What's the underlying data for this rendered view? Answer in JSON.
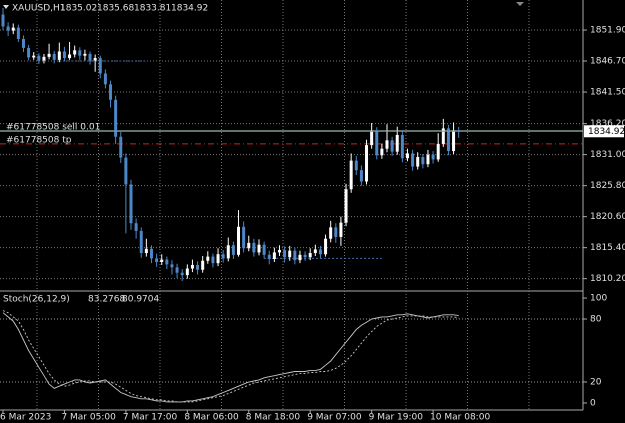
{
  "chart_data": [
    {
      "type": "candlestick",
      "symbol": "XAUUSD,H1",
      "categories": [
        "6 Mar 2023",
        null,
        null,
        null,
        null,
        null,
        null,
        null,
        null,
        null,
        null,
        null,
        "7 Mar 05:00",
        null,
        null,
        null,
        null,
        null,
        null,
        null,
        null,
        null,
        null,
        null,
        "7 Mar 17:00",
        null,
        null,
        null,
        null,
        null,
        null,
        null,
        null,
        null,
        null,
        null,
        "8 Mar 06:00",
        null,
        null,
        null,
        null,
        null,
        null,
        null,
        null,
        null,
        null,
        null,
        "8 Mar 18:00",
        null,
        null,
        null,
        null,
        null,
        null,
        null,
        null,
        null,
        null,
        null,
        "9 Mar 07:00",
        null,
        null,
        null,
        null,
        null,
        null,
        null,
        null,
        null,
        null,
        null,
        "9 Mar 19:00",
        null,
        null,
        null,
        null,
        null,
        null,
        null,
        null,
        null,
        null,
        null,
        "10 Mar 08:00",
        null,
        null,
        null,
        null,
        null
      ],
      "ohlc": [
        [
          1854.5,
          1855.6,
          1851.9,
          1852.5
        ],
        [
          1852.5,
          1853.2,
          1850.9,
          1851.8
        ],
        [
          1851.8,
          1853.0,
          1851.2,
          1852.3
        ],
        [
          1852.3,
          1852.8,
          1849.9,
          1850.4
        ],
        [
          1850.4,
          1851.0,
          1848.2,
          1848.9
        ],
        [
          1848.9,
          1849.4,
          1846.8,
          1847.3
        ],
        [
          1847.3,
          1848.2,
          1846.9,
          1847.6
        ],
        [
          1847.6,
          1848.0,
          1846.2,
          1846.8
        ],
        [
          1846.8,
          1847.9,
          1846.3,
          1847.4
        ],
        [
          1847.4,
          1849.6,
          1847.0,
          1847.9
        ],
        [
          1847.9,
          1848.4,
          1846.3,
          1846.9
        ],
        [
          1846.9,
          1849.8,
          1846.5,
          1848.3
        ],
        [
          1848.3,
          1849.1,
          1846.7,
          1847.2
        ],
        [
          1847.2,
          1849.9,
          1846.9,
          1847.8
        ],
        [
          1847.8,
          1849.3,
          1847.3,
          1848.5
        ],
        [
          1848.5,
          1849.0,
          1846.9,
          1847.6
        ],
        [
          1847.6,
          1848.6,
          1846.8,
          1847.9
        ],
        [
          1847.9,
          1848.3,
          1846.1,
          1846.8
        ],
        [
          1846.8,
          1847.8,
          1844.9,
          1847.2
        ],
        [
          1847.2,
          1847.6,
          1843.8,
          1844.6
        ],
        [
          1844.6,
          1845.3,
          1842.1,
          1842.8
        ],
        [
          1842.8,
          1843.4,
          1838.9,
          1840.2
        ],
        [
          1840.2,
          1840.9,
          1832.8,
          1834.0
        ],
        [
          1834.0,
          1834.8,
          1829.6,
          1830.5
        ],
        [
          1830.5,
          1831.2,
          1817.8,
          1826.0
        ],
        [
          1826.0,
          1826.8,
          1818.4,
          1819.5
        ],
        [
          1819.5,
          1820.3,
          1816.9,
          1818.2
        ],
        [
          1818.2,
          1818.8,
          1813.7,
          1814.5
        ],
        [
          1814.5,
          1816.9,
          1813.9,
          1815.2
        ],
        [
          1815.2,
          1815.8,
          1812.8,
          1813.6
        ],
        [
          1813.6,
          1814.4,
          1812.2,
          1813.0
        ],
        [
          1813.0,
          1814.3,
          1812.5,
          1813.4
        ],
        [
          1813.4,
          1813.9,
          1811.8,
          1812.6
        ],
        [
          1812.6,
          1813.3,
          1810.9,
          1812.1
        ],
        [
          1812.1,
          1812.7,
          1810.3,
          1811.2
        ],
        [
          1811.2,
          1811.8,
          1809.8,
          1810.8
        ],
        [
          1810.8,
          1812.6,
          1810.2,
          1811.9
        ],
        [
          1811.9,
          1813.4,
          1811.3,
          1812.5
        ],
        [
          1812.5,
          1813.1,
          1810.9,
          1811.7
        ],
        [
          1811.7,
          1814.0,
          1811.2,
          1813.2
        ],
        [
          1813.2,
          1814.8,
          1812.7,
          1813.9
        ],
        [
          1813.9,
          1814.4,
          1812.1,
          1812.8
        ],
        [
          1812.8,
          1815.3,
          1812.3,
          1814.3
        ],
        [
          1814.3,
          1815.0,
          1812.9,
          1813.6
        ],
        [
          1813.6,
          1817.1,
          1813.1,
          1815.8
        ],
        [
          1815.8,
          1816.4,
          1813.5,
          1814.2
        ],
        [
          1814.2,
          1821.7,
          1813.9,
          1818.9
        ],
        [
          1818.9,
          1819.8,
          1814.6,
          1815.3
        ],
        [
          1815.3,
          1817.4,
          1814.8,
          1816.2
        ],
        [
          1816.2,
          1816.9,
          1813.9,
          1814.6
        ],
        [
          1814.6,
          1816.8,
          1814.1,
          1815.9
        ],
        [
          1815.9,
          1816.4,
          1813.6,
          1814.2
        ],
        [
          1814.2,
          1814.9,
          1812.6,
          1813.5
        ],
        [
          1813.5,
          1815.4,
          1813.0,
          1814.6
        ],
        [
          1814.6,
          1815.8,
          1814.0,
          1815.0
        ],
        [
          1815.0,
          1815.6,
          1812.9,
          1813.8
        ],
        [
          1813.8,
          1815.7,
          1813.2,
          1814.9
        ],
        [
          1814.9,
          1815.4,
          1812.6,
          1813.3
        ],
        [
          1813.3,
          1814.9,
          1812.8,
          1814.2
        ],
        [
          1814.2,
          1814.8,
          1813.2,
          1813.8
        ],
        [
          1813.8,
          1815.3,
          1813.3,
          1814.5
        ],
        [
          1814.5,
          1815.9,
          1814.0,
          1815.1
        ],
        [
          1815.1,
          1815.7,
          1813.6,
          1814.3
        ],
        [
          1814.3,
          1817.6,
          1813.9,
          1816.9
        ],
        [
          1816.9,
          1819.9,
          1816.3,
          1818.8
        ],
        [
          1818.8,
          1819.5,
          1816.2,
          1817.2
        ],
        [
          1817.2,
          1820.6,
          1815.7,
          1819.6
        ],
        [
          1819.6,
          1826.1,
          1819.0,
          1825.2
        ],
        [
          1825.2,
          1831.2,
          1824.6,
          1830.0
        ],
        [
          1830.0,
          1830.8,
          1827.6,
          1828.4
        ],
        [
          1828.4,
          1829.2,
          1825.8,
          1826.5
        ],
        [
          1826.5,
          1833.5,
          1826.0,
          1832.6
        ],
        [
          1832.6,
          1836.3,
          1832.0,
          1835.0
        ],
        [
          1835.0,
          1835.6,
          1830.2,
          1830.9
        ],
        [
          1830.9,
          1832.8,
          1830.3,
          1832.0
        ],
        [
          1832.0,
          1836.1,
          1831.4,
          1833.4
        ],
        [
          1833.4,
          1834.0,
          1830.8,
          1831.5
        ],
        [
          1831.5,
          1835.7,
          1831.0,
          1834.3
        ],
        [
          1834.3,
          1834.9,
          1829.7,
          1830.4
        ],
        [
          1830.4,
          1832.0,
          1829.9,
          1831.2
        ],
        [
          1831.2,
          1831.8,
          1828.3,
          1829.0
        ],
        [
          1829.0,
          1831.4,
          1828.5,
          1830.6
        ],
        [
          1830.6,
          1831.1,
          1828.7,
          1829.4
        ],
        [
          1829.4,
          1831.8,
          1828.9,
          1831.0
        ],
        [
          1831.0,
          1831.6,
          1829.5,
          1830.2
        ],
        [
          1830.2,
          1834.6,
          1829.8,
          1832.8
        ],
        [
          1832.8,
          1837.0,
          1832.3,
          1835.4
        ],
        [
          1835.4,
          1836.0,
          1830.9,
          1831.6
        ],
        [
          1831.6,
          1836.4,
          1831.1,
          1835.02
        ],
        [
          1835.02,
          1835.68,
          1833.81,
          1834.92
        ]
      ],
      "bull_color": "#ffffff",
      "bear_color": "#4d87c7",
      "ylim": [
        1808.3,
        1856.6
      ],
      "yticks": [
        {
          "value": 1851.9,
          "label": "1851.90"
        },
        {
          "value": 1846.7,
          "label": "1846.70"
        },
        {
          "value": 1841.5,
          "label": "1841.50"
        },
        {
          "value": 1836.2,
          "label": "1836.20"
        },
        {
          "value": 1831.0,
          "label": "1831.00"
        },
        {
          "value": 1825.8,
          "label": "1825.80"
        },
        {
          "value": 1820.6,
          "label": "1820.60"
        },
        {
          "value": 1815.4,
          "label": "1815.40"
        },
        {
          "value": 1810.2,
          "label": "1810.20"
        }
      ],
      "grid": true,
      "price_line_color": "#7d9c90",
      "orders": [
        {
          "label": "#61778508 sell 0.01",
          "price": 1835.0,
          "color": "#7d9c90",
          "dash": false
        },
        {
          "label": "#61778508 tp",
          "price": 1832.8,
          "color": "#d02020",
          "dash": true
        }
      ],
      "levels": [
        {
          "price": 1846.7,
          "from": 11,
          "to": 28,
          "color": "#3f6fb0"
        },
        {
          "price": 1813.6,
          "from": 51,
          "to": 74,
          "color": "#3f6fb0"
        }
      ]
    },
    {
      "type": "line",
      "title": "Stoch(26,12,9)",
      "series": [
        {
          "color": "#c8c8c8",
          "dash": false,
          "values": [
            86,
            82,
            78,
            70,
            60,
            50,
            42,
            34,
            26,
            18,
            14,
            16,
            18,
            20,
            22,
            22,
            20,
            19,
            20,
            21,
            22,
            18,
            14,
            10,
            8,
            6,
            5,
            4,
            4,
            3,
            2,
            2,
            1,
            1,
            1,
            1,
            2,
            2,
            3,
            4,
            5,
            6,
            8,
            10,
            12,
            14,
            16,
            18,
            20,
            21,
            22,
            24,
            25,
            26,
            27,
            28,
            29,
            30,
            30,
            30,
            31,
            31,
            32,
            36,
            40,
            46,
            52,
            58,
            64,
            70,
            74,
            77,
            80,
            81,
            82,
            82,
            83,
            84,
            84,
            85,
            84,
            83,
            82,
            81,
            82,
            83,
            84,
            84,
            84,
            83.2768
          ]
        },
        {
          "color": "#c8c8c8",
          "dash": true,
          "values": [
            88,
            86,
            82,
            78,
            70,
            60,
            52,
            44,
            36,
            28,
            22,
            18,
            16,
            17,
            19,
            20,
            21,
            21,
            20,
            20,
            20,
            20,
            18,
            15,
            12,
            9,
            7,
            6,
            5,
            4,
            3,
            3,
            2,
            2,
            1,
            1,
            1,
            1,
            2,
            3,
            4,
            5,
            6,
            7,
            9,
            11,
            13,
            15,
            17,
            19,
            20,
            21,
            22,
            23,
            24,
            25,
            26,
            27,
            28,
            28,
            29,
            29,
            30,
            30,
            31,
            33,
            36,
            40,
            45,
            51,
            57,
            63,
            68,
            73,
            76,
            79,
            80,
            81,
            82,
            83,
            83,
            83,
            83,
            82,
            82,
            82,
            82,
            82,
            82,
            80.9704
          ]
        }
      ],
      "ylim": [
        -6.7,
        104.8
      ],
      "yticks": [
        100,
        80,
        20,
        0
      ],
      "levels": [
        80,
        20
      ]
    }
  ]
}
